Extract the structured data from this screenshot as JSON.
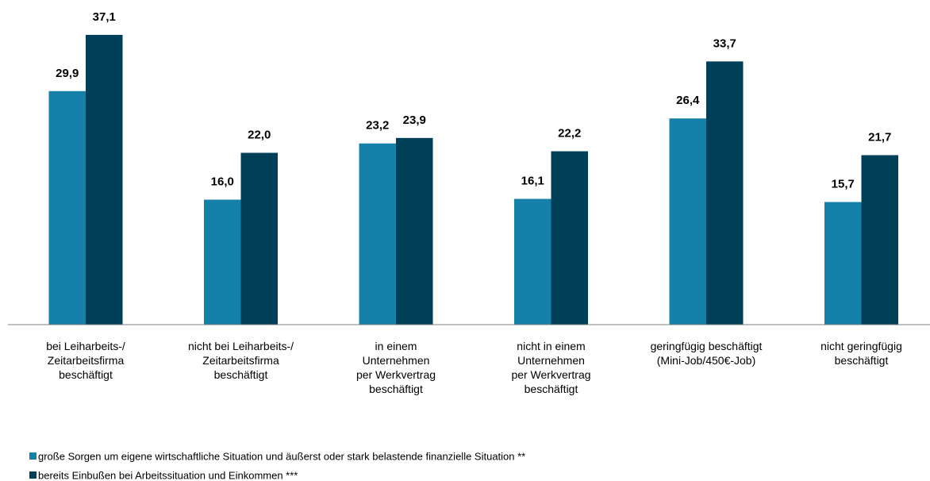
{
  "chart_data": {
    "type": "bar",
    "categories": [
      "bei Leiharbeits-/\nZeitarbeitsfirma\nbeschäftigt",
      "nicht bei Leiharbeits-/\nZeitarbeitsfirma\nbeschäftigt",
      "in einem\nUnternehmen\nper Werkvertrag\nbeschäftigt",
      "nicht in einem\nUnternehmen\nper Werkvertrag\nbeschäftigt",
      "geringfügig beschäftigt\n(Mini-Job/450€-Job)",
      "nicht geringfügig\nbeschäftigt"
    ],
    "series": [
      {
        "name": "große Sorgen um eigene wirtschaftliche Situation und äußerst oder stark belastende finanzielle Situation **",
        "color": "#1580a8",
        "values": [
          29.9,
          16.0,
          23.2,
          16.1,
          26.4,
          15.7
        ],
        "value_labels": [
          "29,9",
          "16,0",
          "23,2",
          "16,1",
          "26,4",
          "15,7"
        ]
      },
      {
        "name": "bereits Einbußen bei Arbeitssituation und Einkommen ***",
        "color": "#003f58",
        "values": [
          37.1,
          22.0,
          23.9,
          22.2,
          33.7,
          21.7
        ],
        "value_labels": [
          "37,1",
          "22,0",
          "23,9",
          "22,2",
          "33,7",
          "21,7"
        ]
      }
    ],
    "ylim": [
      0,
      40
    ],
    "legend": "bottom-left"
  }
}
